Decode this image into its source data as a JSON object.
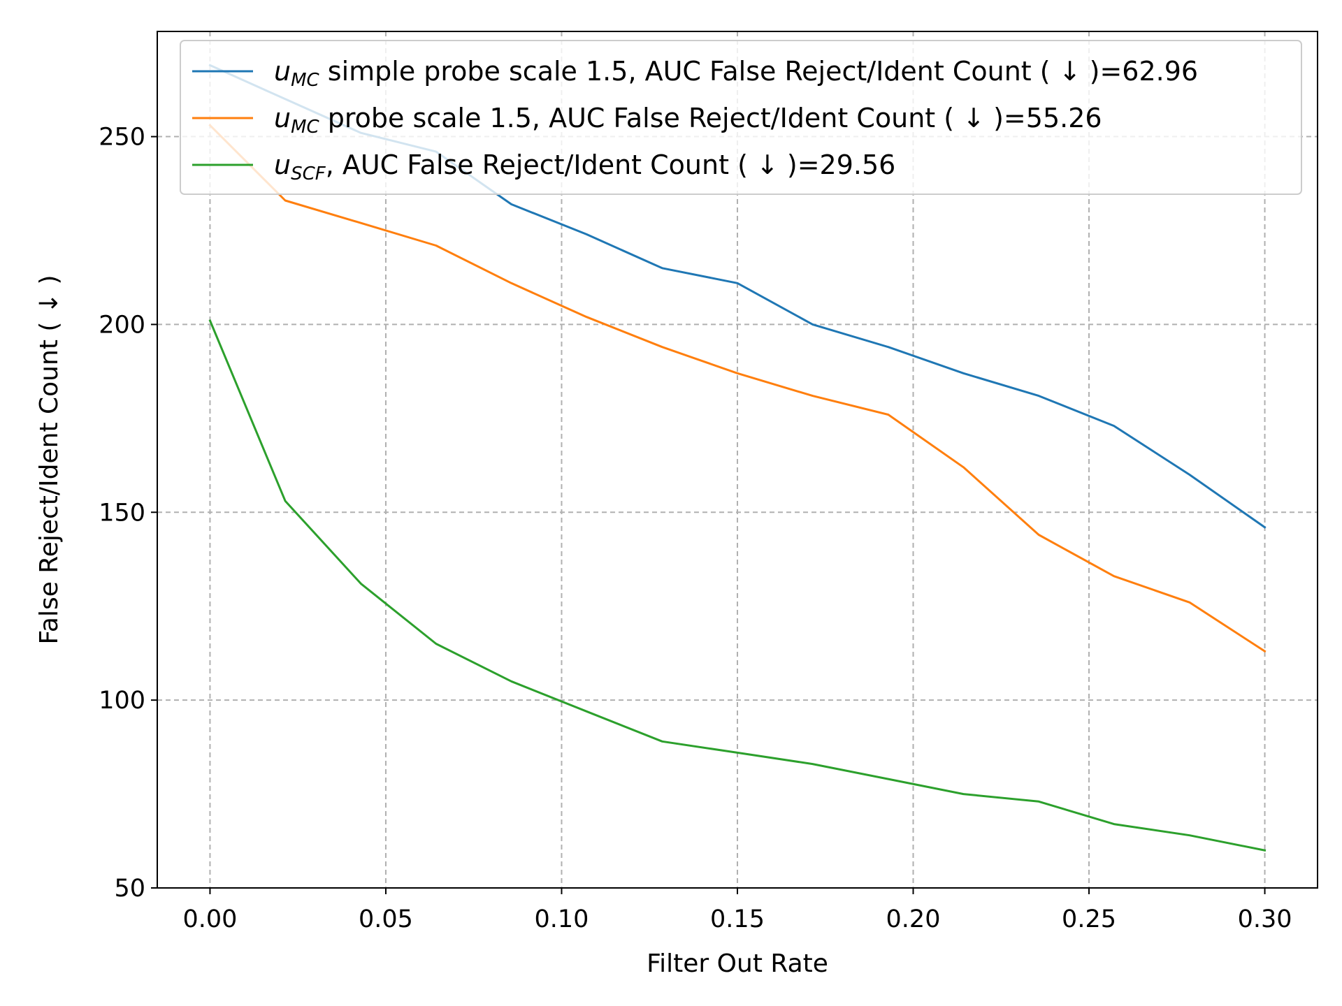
{
  "chart_data": {
    "type": "line",
    "xlabel": "Filter Out Rate",
    "ylabel": "False Reject/Ident Count ( ↓ )",
    "xlim": [
      -0.015,
      0.315
    ],
    "ylim": [
      50,
      278
    ],
    "xticks": [
      0.0,
      0.05,
      0.1,
      0.15,
      0.2,
      0.25,
      0.3
    ],
    "xtick_labels": [
      "0.00",
      "0.05",
      "0.10",
      "0.15",
      "0.20",
      "0.25",
      "0.30"
    ],
    "yticks": [
      50,
      100,
      150,
      200,
      250
    ],
    "ytick_labels": [
      "50",
      "100",
      "150",
      "200",
      "250"
    ],
    "grid": true,
    "legend_position": "top-right",
    "x": [
      0.0,
      0.0214,
      0.0429,
      0.0643,
      0.0857,
      0.1071,
      0.1286,
      0.15,
      0.1714,
      0.1929,
      0.2143,
      0.2357,
      0.2571,
      0.2786,
      0.3
    ],
    "series": [
      {
        "legend_symbol": "u",
        "legend_subscript": "MC",
        "legend_text": " simple probe scale 1.5, AUC False Reject/Ident Count ( ↓ )=62.96",
        "color": "#1f77b4",
        "values": [
          269,
          260,
          251,
          246,
          232,
          224,
          215,
          211,
          200,
          194,
          187,
          181,
          173,
          160,
          146
        ]
      },
      {
        "legend_symbol": "u",
        "legend_subscript": "MC",
        "legend_text": " probe scale 1.5, AUC False Reject/Ident Count ( ↓ )=55.26",
        "color": "#ff7f0e",
        "values": [
          253,
          233,
          227,
          221,
          211,
          202,
          194,
          187,
          181,
          176,
          162,
          144,
          133,
          126,
          113
        ]
      },
      {
        "legend_symbol": "u",
        "legend_subscript": "SCF",
        "legend_text": ", AUC False Reject/Ident Count ( ↓ )=29.56",
        "color": "#2ca02c",
        "values": [
          201,
          153,
          131,
          115,
          105,
          97,
          89,
          86,
          83,
          79,
          75,
          73,
          67,
          64,
          60
        ]
      }
    ]
  }
}
